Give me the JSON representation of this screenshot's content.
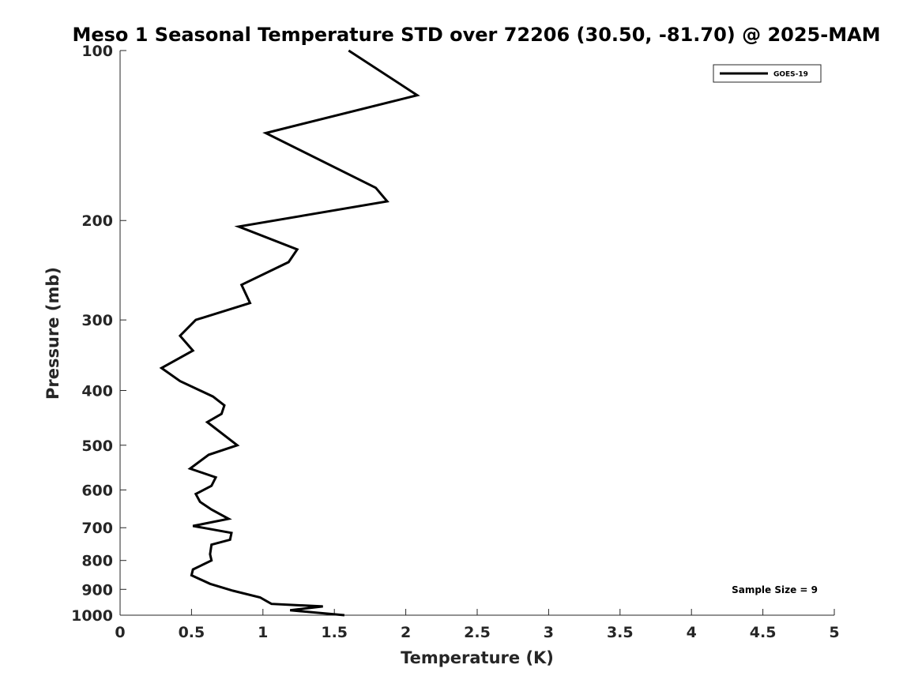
{
  "chart_data": {
    "type": "line",
    "title": "Meso 1 Seasonal Temperature STD over 72206 (30.50, -81.70) @ 2025-MAM",
    "xlabel": "Temperature (K)",
    "ylabel": "Pressure (mb)",
    "xlim": [
      0,
      5
    ],
    "ylim": [
      1000,
      100
    ],
    "yscale": "log",
    "y_reversed": true,
    "grid": false,
    "legend_position": "top-right",
    "xticks": [
      "0",
      "0.5",
      "1",
      "1.5",
      "2",
      "2.5",
      "3",
      "3.5",
      "4",
      "4.5",
      "5"
    ],
    "yticks": [
      "100",
      "200",
      "300",
      "400",
      "500",
      "600",
      "700",
      "800",
      "900",
      "1000"
    ],
    "annotation": "Sample Size = 9",
    "series": [
      {
        "name": "GOES-19",
        "color": "#000000",
        "x": [
          1.6,
          2.08,
          1.02,
          1.79,
          1.87,
          0.83,
          1.24,
          1.18,
          0.85,
          0.91,
          0.53,
          0.42,
          0.51,
          0.29,
          0.42,
          0.65,
          0.73,
          0.71,
          0.61,
          0.82,
          0.62,
          0.49,
          0.67,
          0.64,
          0.53,
          0.56,
          0.64,
          0.76,
          0.51,
          0.78,
          0.77,
          0.64,
          0.63,
          0.64,
          0.51,
          0.5,
          0.63,
          0.79,
          0.98,
          1.06,
          1.42,
          1.19,
          1.57
        ],
        "y": [
          100,
          120,
          140,
          175,
          185,
          205,
          225,
          237,
          260,
          280,
          300,
          320,
          340,
          365,
          385,
          410,
          425,
          440,
          455,
          500,
          520,
          550,
          570,
          590,
          610,
          630,
          650,
          675,
          695,
          715,
          735,
          750,
          780,
          800,
          830,
          850,
          880,
          905,
          930,
          955,
          965,
          980,
          1000
        ]
      }
    ]
  }
}
